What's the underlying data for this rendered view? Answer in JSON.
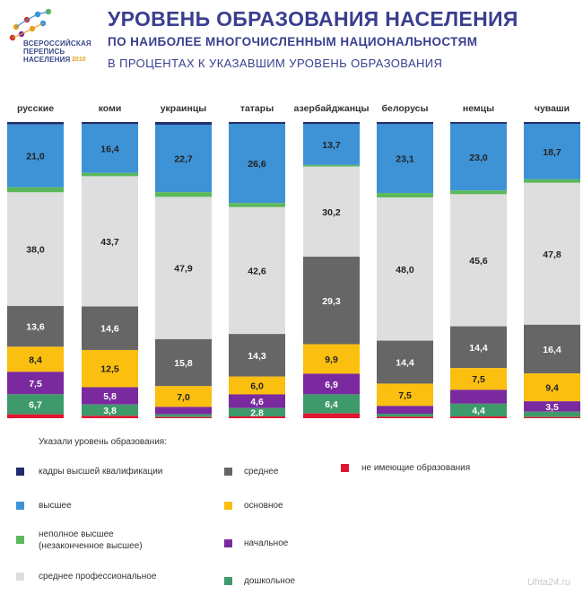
{
  "header": {
    "logo_text_1": "ВСЕРОССИЙСКАЯ",
    "logo_text_2": "ПЕРЕПИСЬ",
    "logo_text_3": "НАСЕЛЕНИЯ",
    "logo_year": "2010",
    "title": "УРОВЕНЬ ОБРАЗОВАНИЯ НАСЕЛЕНИЯ",
    "subtitle": "ПО НАИБОЛЕЕ  МНОГОЧИСЛЕННЫМ  НАЦИОНАЛЬНОСТЯМ",
    "subtitle2": "В ПРОЦЕНТАХ  К УКАЗАВШИМ  УРОВЕНЬ  ОБРАЗОВАНИЯ"
  },
  "legend": {
    "title": "Указали уровень образования:",
    "items": [
      {
        "label": "кадры высшей квалификации",
        "color": "#1f2d6b"
      },
      {
        "label": "высшее",
        "color": "#3e92d6"
      },
      {
        "label": "неполное высшее\n(незаконченное высшее)",
        "color": "#5cb85c"
      },
      {
        "label": "среднее профессиональное",
        "color": "#dedede"
      },
      {
        "label": "среднее",
        "color": "#666666"
      },
      {
        "label": "основное",
        "color": "#fbbf10"
      },
      {
        "label": "начальное",
        "color": "#7a2a9e"
      },
      {
        "label": "дошкольное",
        "color": "#3f9a6b"
      },
      {
        "label": "не имеющие образования",
        "color": "#e01530"
      }
    ]
  },
  "watermark": "Uhta24.ru",
  "chart_data": {
    "type": "bar",
    "stacked": true,
    "normalized": true,
    "categories": [
      "русские",
      "коми",
      "украинцы",
      "татары",
      "азербайджанцы",
      "белорусы",
      "немцы",
      "чуваши"
    ],
    "series": [
      {
        "name": "кадры высшей квалификации",
        "color": "#1f2d6b",
        "values": [
          0.8,
          0.7,
          0.9,
          0.6,
          0.7,
          0.7,
          0.6,
          0.6
        ],
        "labels": [
          null,
          null,
          null,
          null,
          null,
          null,
          null,
          null
        ]
      },
      {
        "name": "высшее",
        "color": "#3e92d6",
        "values": [
          21.0,
          16.4,
          22.7,
          26.6,
          13.7,
          23.1,
          23.0,
          18.7
        ],
        "labels": [
          "21,0",
          "16,4",
          "22,7",
          "26,6",
          "13,7",
          "23,1",
          "23,0",
          "18,7"
        ]
      },
      {
        "name": "неполное высшее (незаконченное высшее)",
        "color": "#5cb85c",
        "values": [
          1.7,
          1.1,
          1.6,
          1.4,
          0.5,
          1.5,
          1.3,
          1.2
        ],
        "labels": [
          null,
          null,
          null,
          null,
          null,
          null,
          null,
          null
        ]
      },
      {
        "name": "среднее профессиональное",
        "color": "#dedede",
        "values": [
          38.0,
          43.7,
          47.9,
          42.6,
          30.2,
          48.0,
          45.6,
          47.8
        ],
        "labels": [
          "38,0",
          "43,7",
          "47,9",
          "42,6",
          "30,2",
          "48,0",
          "45,6",
          "47,8"
        ]
      },
      {
        "name": "среднее",
        "color": "#666666",
        "values": [
          13.6,
          14.6,
          15.8,
          14.3,
          29.3,
          14.4,
          14.4,
          16.4
        ],
        "labels": [
          "13,6",
          "14,6",
          "15,8",
          "14,3",
          "29,3",
          "14,4",
          "14,4",
          "16,4"
        ]
      },
      {
        "name": "основное",
        "color": "#fbbf10",
        "values": [
          8.4,
          12.5,
          7.0,
          6.0,
          9.9,
          7.5,
          7.5,
          9.4
        ],
        "labels": [
          "8,4",
          "12,5",
          "7,0",
          "6,0",
          "9,9",
          "7,5",
          "7,5",
          "9,4"
        ]
      },
      {
        "name": "начальное",
        "color": "#7a2a9e",
        "values": [
          7.5,
          5.8,
          2.5,
          4.6,
          6.9,
          2.6,
          4.8,
          3.5
        ],
        "labels": [
          "7,5",
          "5,8",
          null,
          "4,6",
          "6,9",
          null,
          null,
          "3,5"
        ]
      },
      {
        "name": "дошкольное",
        "color": "#3f9a6b",
        "values": [
          6.7,
          3.8,
          0.9,
          2.8,
          6.4,
          1.0,
          4.4,
          1.8
        ],
        "labels": [
          "6,7",
          "3,8",
          null,
          "2,8",
          "6,4",
          null,
          "4,4",
          null
        ]
      },
      {
        "name": "не имеющие образования",
        "color": "#e01530",
        "values": [
          1.3,
          0.8,
          0.4,
          0.6,
          1.6,
          0.5,
          0.6,
          0.4
        ],
        "labels": [
          null,
          null,
          null,
          null,
          null,
          null,
          null,
          null
        ]
      }
    ],
    "legend_placement": "bottom",
    "grid": false
  }
}
